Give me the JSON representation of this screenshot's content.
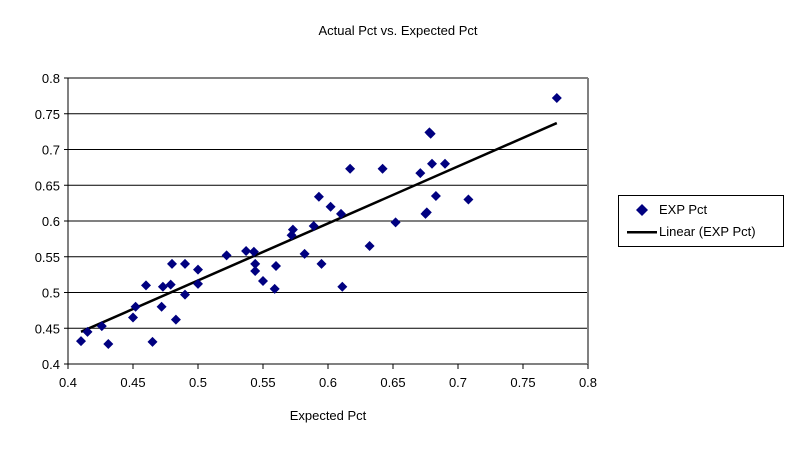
{
  "chart_data": {
    "type": "scatter",
    "title": "Actual Pct vs. Expected Pct",
    "xlabel": "Expected Pct",
    "ylabel": "",
    "xlim": [
      0.4,
      0.8
    ],
    "ylim": [
      0.4,
      0.8
    ],
    "x_ticks": [
      "0.4",
      "0.45",
      "0.5",
      "0.55",
      "0.6",
      "0.65",
      "0.7",
      "0.75",
      "0.8"
    ],
    "y_ticks": [
      "0.4",
      "0.45",
      "0.5",
      "0.55",
      "0.6",
      "0.65",
      "0.7",
      "0.75",
      "0.8"
    ],
    "grid": "horizontal",
    "legend_position": "right",
    "series": [
      {
        "name": "EXP Pct",
        "type": "scatter",
        "color": "#000080",
        "points": [
          [
            0.41,
            0.432
          ],
          [
            0.415,
            0.445
          ],
          [
            0.426,
            0.453
          ],
          [
            0.431,
            0.428
          ],
          [
            0.45,
            0.465
          ],
          [
            0.452,
            0.48
          ],
          [
            0.46,
            0.51
          ],
          [
            0.465,
            0.431
          ],
          [
            0.472,
            0.48
          ],
          [
            0.473,
            0.508
          ],
          [
            0.479,
            0.511
          ],
          [
            0.48,
            0.54
          ],
          [
            0.483,
            0.462
          ],
          [
            0.49,
            0.54
          ],
          [
            0.49,
            0.497
          ],
          [
            0.5,
            0.532
          ],
          [
            0.5,
            0.512
          ],
          [
            0.522,
            0.552
          ],
          [
            0.537,
            0.558
          ],
          [
            0.543,
            0.557
          ],
          [
            0.544,
            0.54
          ],
          [
            0.544,
            0.53
          ],
          [
            0.55,
            0.516
          ],
          [
            0.559,
            0.505
          ],
          [
            0.56,
            0.537
          ],
          [
            0.572,
            0.58
          ],
          [
            0.573,
            0.588
          ],
          [
            0.582,
            0.554
          ],
          [
            0.589,
            0.593
          ],
          [
            0.593,
            0.634
          ],
          [
            0.595,
            0.54
          ],
          [
            0.602,
            0.62
          ],
          [
            0.61,
            0.61
          ],
          [
            0.611,
            0.508
          ],
          [
            0.617,
            0.673
          ],
          [
            0.632,
            0.565
          ],
          [
            0.642,
            0.673
          ],
          [
            0.652,
            0.598
          ],
          [
            0.671,
            0.667
          ],
          [
            0.675,
            0.61
          ],
          [
            0.676,
            0.612
          ],
          [
            0.678,
            0.724
          ],
          [
            0.679,
            0.722
          ],
          [
            0.68,
            0.68
          ],
          [
            0.683,
            0.635
          ],
          [
            0.69,
            0.68
          ],
          [
            0.708,
            0.63
          ],
          [
            0.776,
            0.772
          ]
        ]
      },
      {
        "name": "Linear (EXP Pct)",
        "type": "line",
        "color": "#000000",
        "points": [
          [
            0.41,
            0.445
          ],
          [
            0.776,
            0.737
          ]
        ]
      }
    ]
  }
}
